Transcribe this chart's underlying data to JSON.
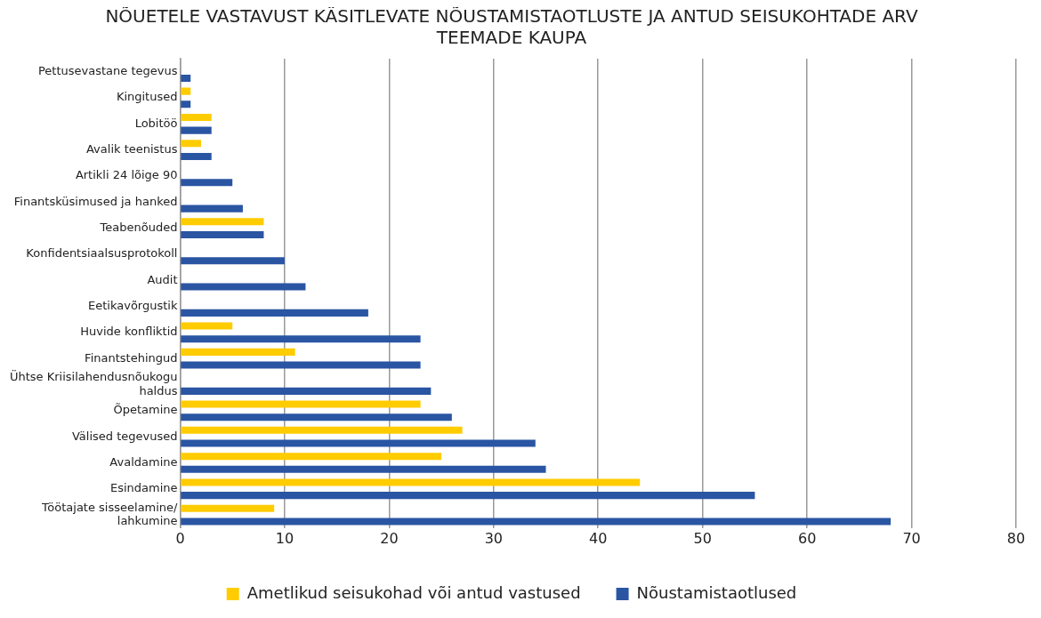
{
  "chart_data": {
    "type": "bar",
    "orientation": "horizontal",
    "title": "NÕUETELE VASTAVUST KÄSITLEVATE NÕUSTAMISTAOTLUSTE JA ANTUD SEISUKOHTADE ARV TEEMADE KAUPA",
    "categories": [
      "Pettusevastane tegevus",
      "Kingitused",
      "Lobitöö",
      "Avalik teenistus",
      "Artikli 24 lõige 90",
      "Finantsküsimused ja hanked",
      "Teabenõuded",
      "Konfidentsiaalsusprotokoll",
      "Audit",
      "Eetikavõrgustik",
      "Huvide konfliktid",
      "Finantstehingud",
      "Ühtse Kriisilahendusnõukogu haldus",
      "Õpetamine",
      "Välised tegevused",
      "Avaldamine",
      "Esindamine",
      "Töötajate sisseelamine/ lahkumine"
    ],
    "series": [
      {
        "name": "Ametlikud seisukohad või antud vastused",
        "color": "#ffcc00",
        "values": [
          null,
          1,
          3,
          2,
          null,
          null,
          8,
          null,
          null,
          null,
          5,
          11,
          null,
          23,
          27,
          25,
          44,
          9
        ]
      },
      {
        "name": "Nõustamistaotlused",
        "color": "#2a55a3",
        "values": [
          1,
          1,
          3,
          3,
          5,
          6,
          8,
          10,
          12,
          18,
          23,
          23,
          24,
          26,
          34,
          35,
          55,
          68
        ]
      }
    ],
    "xlim": [
      0,
      80
    ],
    "xticks": [
      0,
      10,
      20,
      30,
      40,
      50,
      60,
      70,
      80
    ],
    "grid": "x",
    "legend": "bottom"
  }
}
